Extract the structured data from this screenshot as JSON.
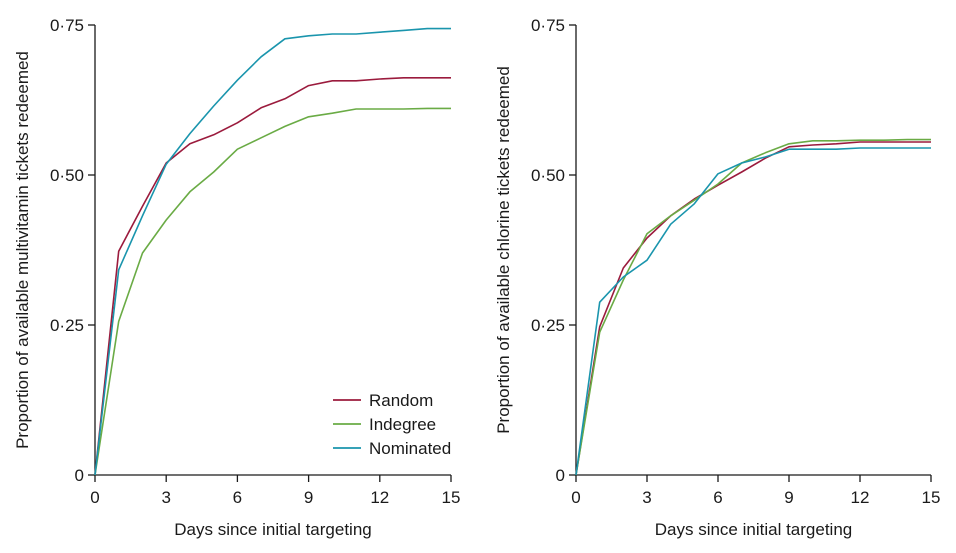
{
  "chart_data": [
    {
      "type": "line",
      "ylabel": "Proportion of available multivitamin tickets redeemed",
      "xlabel": "Days since initial targeting",
      "xlim": [
        0,
        15
      ],
      "ylim": [
        0,
        0.75
      ],
      "xticks": [
        0,
        3,
        6,
        9,
        12,
        15
      ],
      "xtick_labels": [
        "0",
        "3",
        "6",
        "9",
        "12",
        "15"
      ],
      "yticks": [
        0,
        0.25,
        0.5,
        0.75
      ],
      "ytick_labels": [
        "0",
        "0·25",
        "0·50",
        "0·75"
      ],
      "grid": false,
      "legend": {
        "placement": "bottom-right"
      },
      "x": [
        0,
        1,
        2,
        3,
        4,
        5,
        6,
        7,
        8,
        9,
        10,
        11,
        12,
        13,
        14,
        15
      ],
      "series": [
        {
          "name": "Random",
          "color": "#9b1b3d",
          "values": [
            0,
            0.373,
            0.448,
            0.52,
            0.552,
            0.567,
            0.587,
            0.612,
            0.627,
            0.649,
            0.657,
            0.657,
            0.66,
            0.662,
            0.662,
            0.662
          ]
        },
        {
          "name": "Indegree",
          "color": "#6aab45",
          "values": [
            0,
            0.256,
            0.37,
            0.425,
            0.472,
            0.505,
            0.543,
            0.562,
            0.581,
            0.597,
            0.603,
            0.61,
            0.61,
            0.61,
            0.611,
            0.611
          ]
        },
        {
          "name": "Nominated",
          "color": "#1a95ad",
          "values": [
            0,
            0.342,
            0.432,
            0.518,
            0.569,
            0.615,
            0.658,
            0.697,
            0.727,
            0.732,
            0.735,
            0.735,
            0.738,
            0.741,
            0.744,
            0.744
          ]
        }
      ]
    },
    {
      "type": "line",
      "ylabel": "Proportion of available chlorine tickets redeemed",
      "xlabel": "Days since initial targeting",
      "xlim": [
        0,
        15
      ],
      "ylim": [
        0,
        0.75
      ],
      "xticks": [
        0,
        3,
        6,
        9,
        12,
        15
      ],
      "xtick_labels": [
        "0",
        "3",
        "6",
        "9",
        "12",
        "15"
      ],
      "yticks": [
        0,
        0.25,
        0.5,
        0.75
      ],
      "ytick_labels": [
        "0",
        "0·25",
        "0·50",
        "0·75"
      ],
      "grid": false,
      "x": [
        0,
        1,
        2,
        3,
        4,
        5,
        6,
        7,
        8,
        9,
        10,
        11,
        12,
        13,
        14,
        15
      ],
      "series": [
        {
          "name": "Random",
          "color": "#9b1b3d",
          "values": [
            0,
            0.247,
            0.345,
            0.395,
            0.432,
            0.46,
            0.483,
            0.505,
            0.528,
            0.547,
            0.55,
            0.552,
            0.555,
            0.555,
            0.555,
            0.555
          ]
        },
        {
          "name": "Indegree",
          "color": "#6aab45",
          "values": [
            0,
            0.238,
            0.325,
            0.402,
            0.432,
            0.458,
            0.485,
            0.52,
            0.537,
            0.552,
            0.557,
            0.557,
            0.558,
            0.558,
            0.559,
            0.559
          ]
        },
        {
          "name": "Nominated",
          "color": "#1a95ad",
          "values": [
            0,
            0.288,
            0.33,
            0.358,
            0.418,
            0.452,
            0.502,
            0.52,
            0.53,
            0.543,
            0.543,
            0.543,
            0.545,
            0.545,
            0.545,
            0.545
          ]
        }
      ]
    }
  ]
}
